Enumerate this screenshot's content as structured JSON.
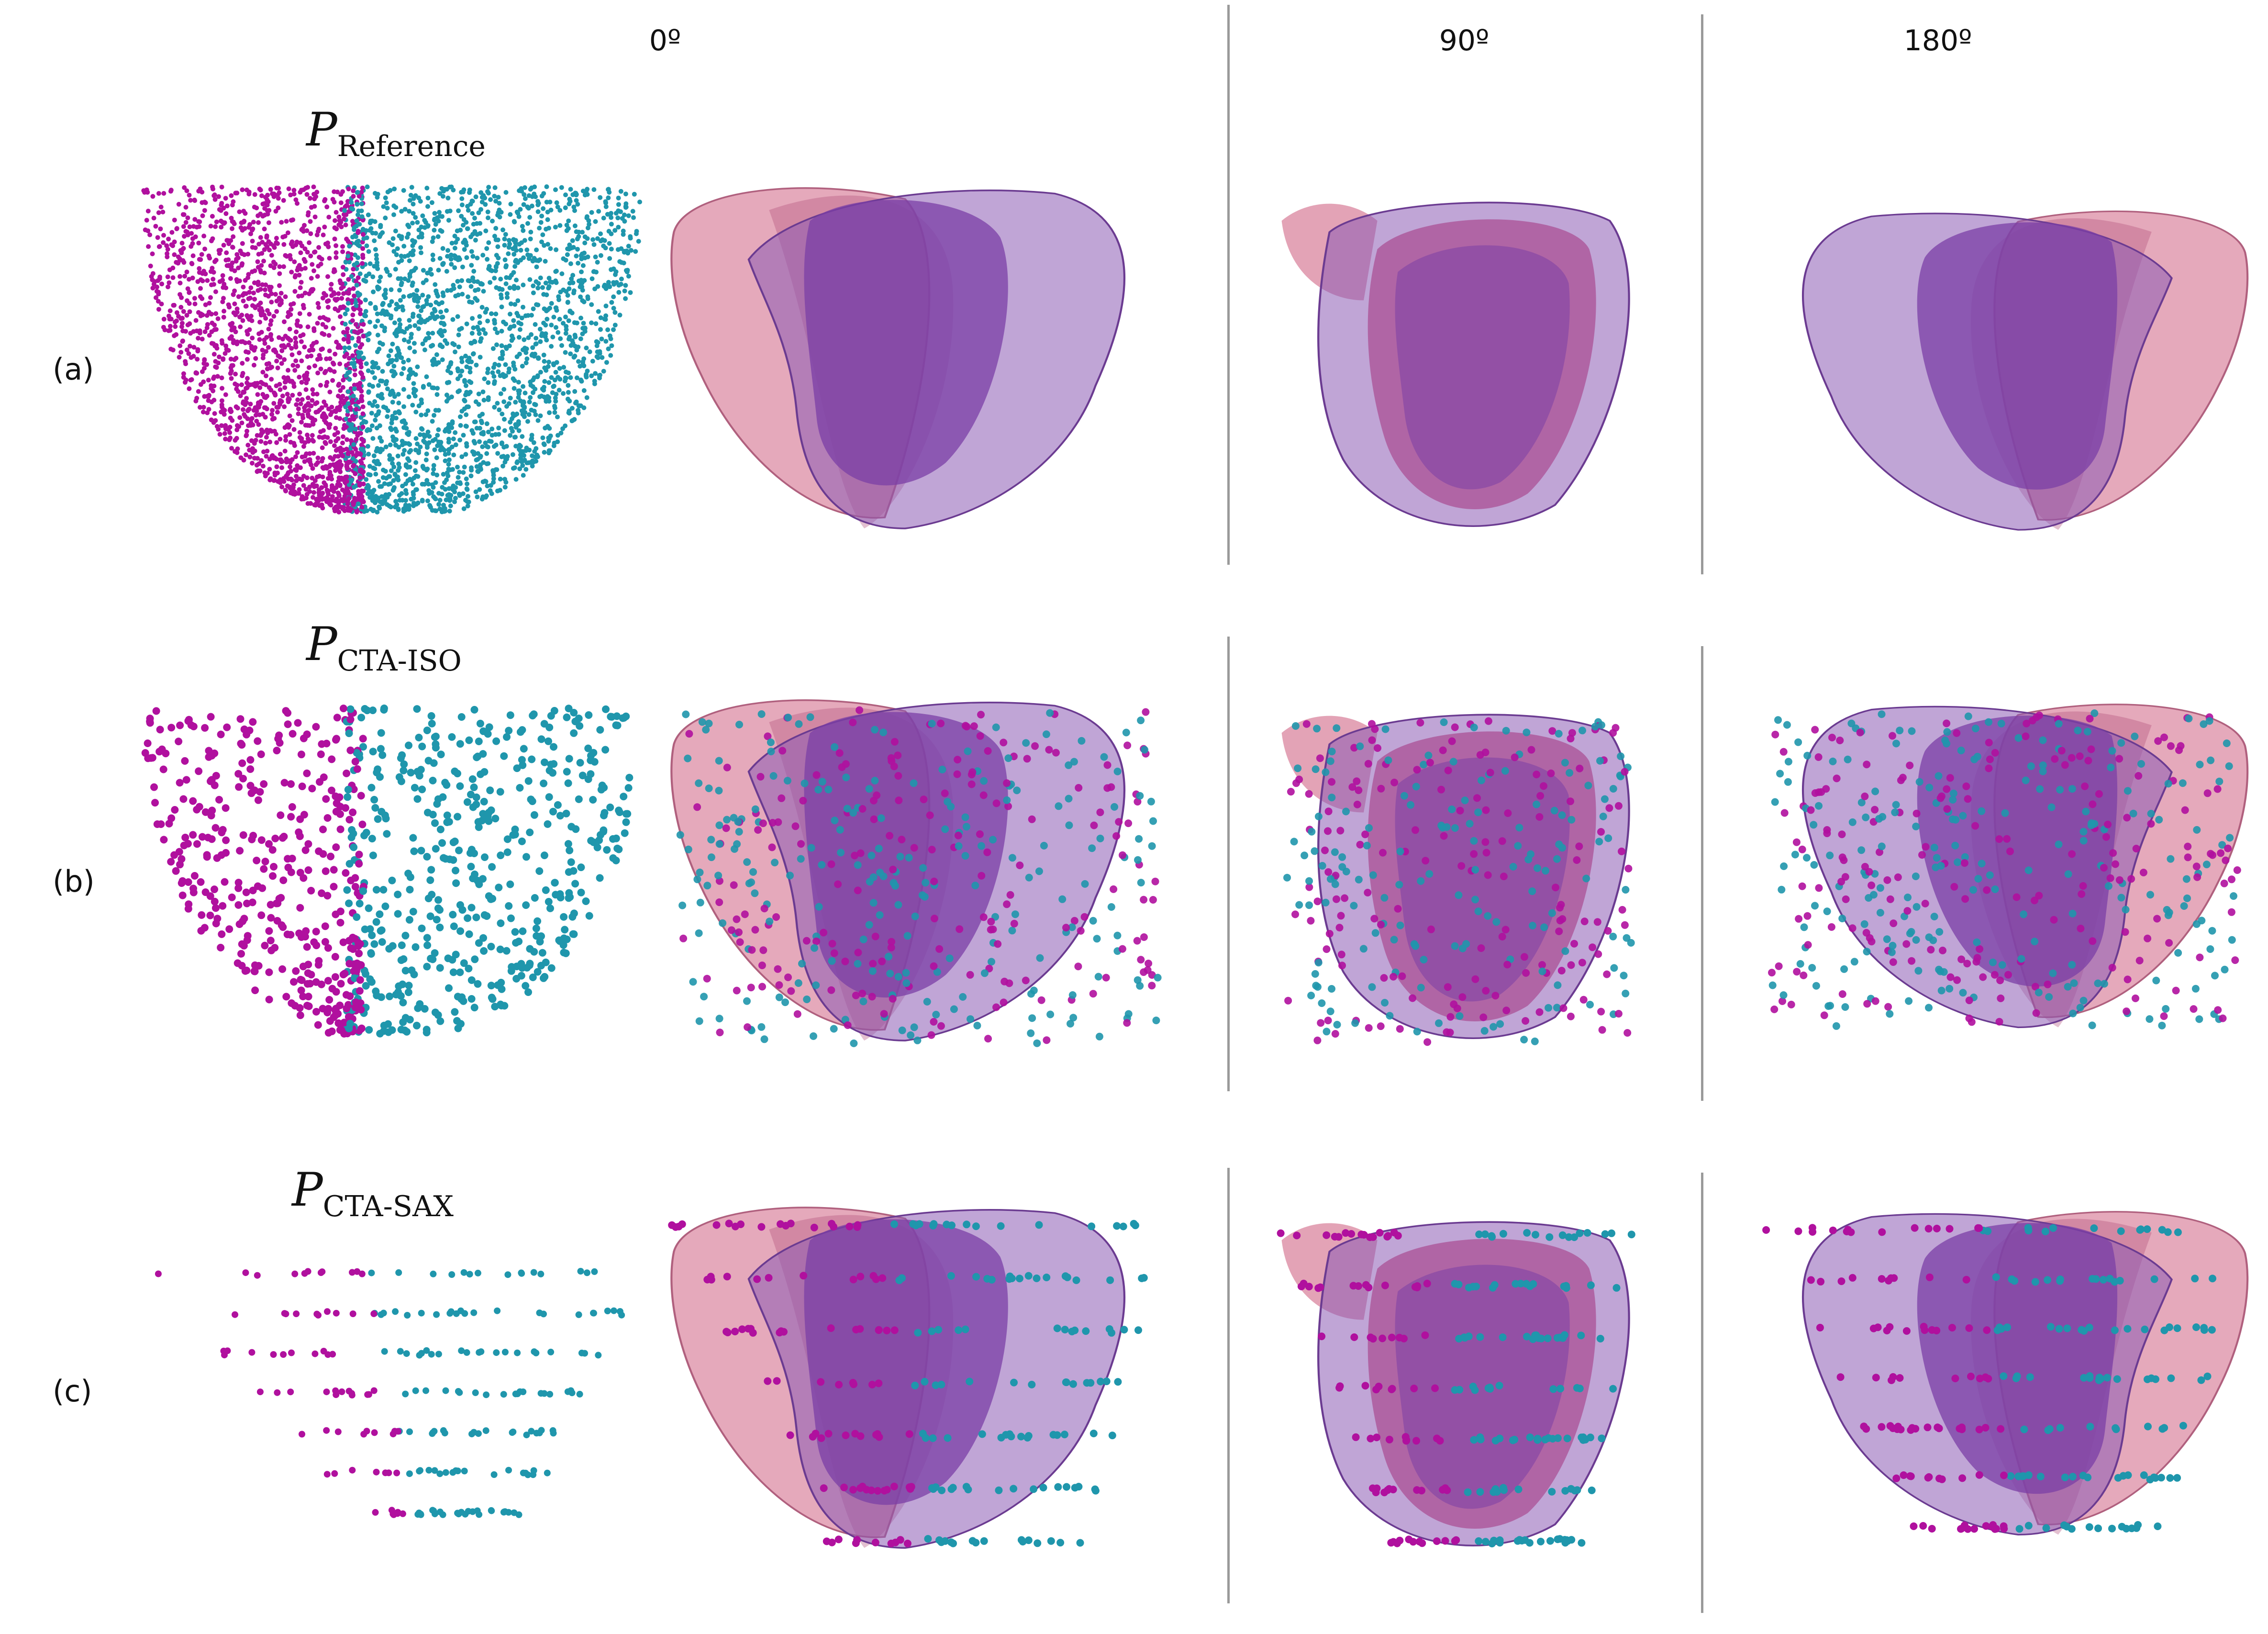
{
  "column_headers": [
    "0º",
    "90º",
    "180º"
  ],
  "rows": [
    {
      "label": "(a)",
      "set_name": "P",
      "set_subscript": "Reference"
    },
    {
      "label": "(b)",
      "set_name": "P",
      "set_subscript": "CTA-ISO"
    },
    {
      "label": "(c)",
      "set_name": "P",
      "set_subscript": "CTA-SAX"
    }
  ],
  "colors": {
    "magenta_points": "#b0109e",
    "cyan_points": "#1f96ac",
    "pink_mesh": "#dc8ca4",
    "purple_mesh": "#7b3fa6",
    "separator": "#9a9a9a"
  }
}
